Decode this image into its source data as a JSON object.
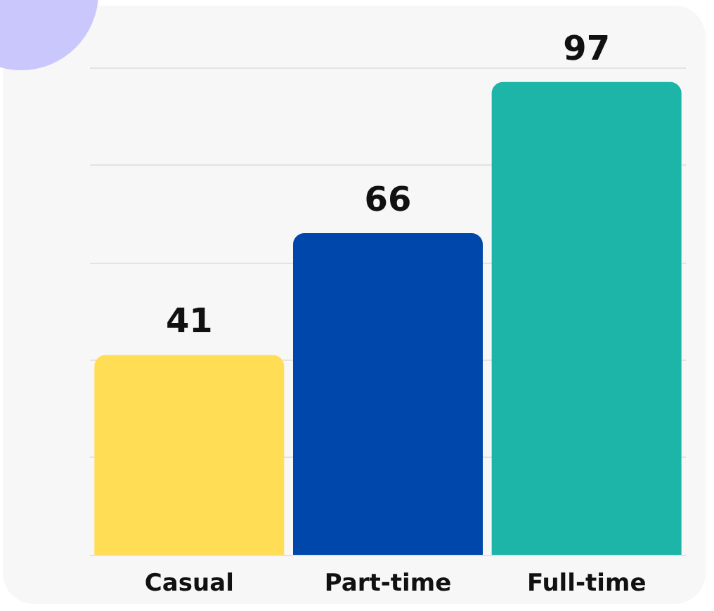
{
  "chart_data": {
    "type": "bar",
    "categories": [
      "Casual",
      "Part-time",
      "Full-time"
    ],
    "values": [
      41,
      66,
      97
    ],
    "colors": [
      "#ffdd55",
      "#0047ab",
      "#1db5a8"
    ],
    "relative": false,
    "ylim": [
      0,
      100
    ],
    "yticks": [
      {
        "value": 0,
        "label": null
      },
      {
        "value": 20,
        "label": null
      },
      {
        "value": 40,
        "label": null
      },
      {
        "value": 60,
        "label": null
      },
      {
        "value": 80,
        "label": null
      },
      {
        "value": 100,
        "label": null
      }
    ],
    "tick_labels": "x",
    "grid": "y",
    "data_labels": true
  }
}
